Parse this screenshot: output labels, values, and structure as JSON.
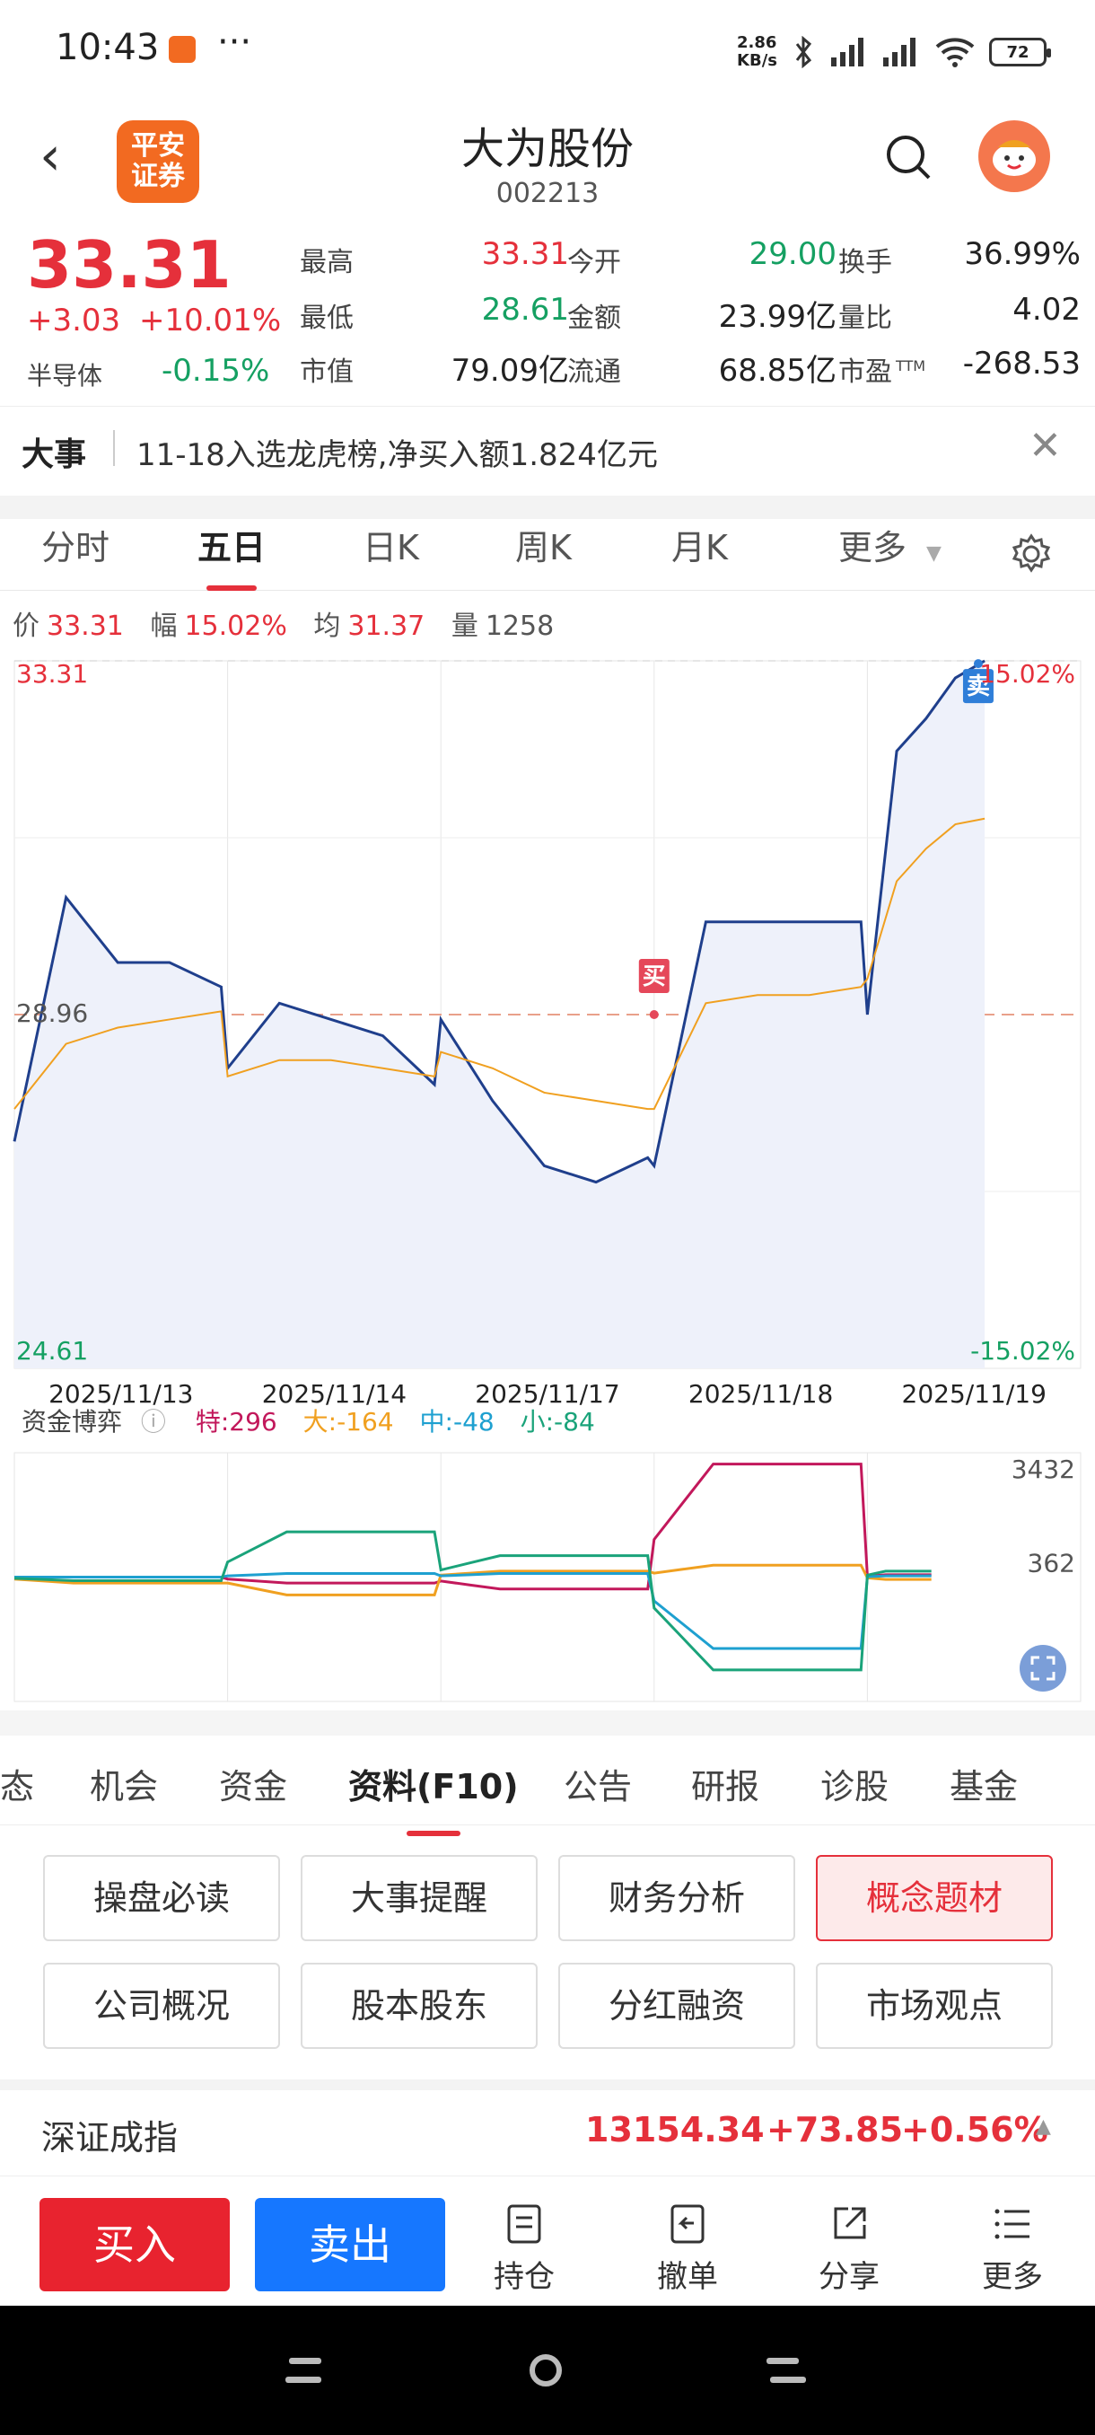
{
  "status": {
    "time": "10:43",
    "net_speed": "2.86\nKB/s",
    "battery": "72"
  },
  "header": {
    "back": "‹",
    "logo": "平安\n证券",
    "title": "大为股份",
    "code": "002213"
  },
  "quote": {
    "price": "33.31",
    "change": "+3.03",
    "change_pct": "+10.01%",
    "sector": "半导体",
    "sector_pct": "-0.15%",
    "fields": [
      {
        "label": "最高",
        "value": "33.31",
        "tone": "red"
      },
      {
        "label": "今开",
        "value": "29.00",
        "tone": "green"
      },
      {
        "label": "换手",
        "value": "36.99%",
        "tone": "black"
      },
      {
        "label": "最低",
        "value": "28.61",
        "tone": "green"
      },
      {
        "label": "金额",
        "value": "23.99亿",
        "tone": "black"
      },
      {
        "label": "量比",
        "value": "4.02",
        "tone": "black"
      },
      {
        "label": "市值",
        "value": "79.09亿",
        "tone": "black"
      },
      {
        "label": "流通",
        "value": "68.85亿",
        "tone": "black"
      },
      {
        "label": "市盈",
        "value": "-268.53",
        "tone": "black",
        "sup": "TTM"
      }
    ]
  },
  "event": {
    "label": "大事",
    "text": "11-18入选龙虎榜,净买入额1.824亿元",
    "close": "✕"
  },
  "chart_tabs": [
    "分时",
    "五日",
    "日K",
    "周K",
    "月K",
    "更多"
  ],
  "chart_tabs_active": 1,
  "info": {
    "price_label": "价",
    "price": "33.31",
    "amp_label": "幅",
    "amp": "15.02%",
    "avg_label": "均",
    "avg": "31.37",
    "vol_label": "量",
    "vol": "1258"
  },
  "chart_data": {
    "type": "line",
    "x": [
      "2025/11/13",
      "2025/11/14",
      "2025/11/17",
      "2025/11/18",
      "2025/11/19"
    ],
    "ylim": [
      24.61,
      33.31
    ],
    "y_left_labels": [
      "33.31",
      "28.96",
      "24.61"
    ],
    "y_right_labels": [
      "15.02%",
      "-15.02%"
    ],
    "prev_close": 28.96,
    "markers": [
      {
        "label": "买",
        "day": "2025/11/18",
        "price": 28.96
      },
      {
        "label": "卖",
        "day": "2025/11/19",
        "price": 32.9
      }
    ],
    "series": [
      {
        "color": "#1f3f8c",
        "values": [
          [
            27.4,
            30.4,
            29.6,
            29.6,
            29.3
          ],
          [
            28.3,
            29.1,
            28.9,
            28.7,
            28.1
          ],
          [
            28.9,
            27.9,
            27.1,
            26.9,
            27.2
          ],
          [
            27.1,
            30.1,
            30.1,
            30.1,
            30.1
          ],
          [
            28.96,
            32.2,
            32.6,
            33.1,
            33.31
          ]
        ]
      },
      {
        "color": "#f0a020",
        "values": [
          [
            27.8,
            28.6,
            28.8,
            28.9,
            29.0
          ],
          [
            28.2,
            28.4,
            28.4,
            28.3,
            28.2
          ],
          [
            28.5,
            28.3,
            28.0,
            27.9,
            27.8
          ],
          [
            27.8,
            29.1,
            29.2,
            29.2,
            29.3
          ],
          [
            29.4,
            30.6,
            31.0,
            31.3,
            31.37
          ]
        ]
      }
    ]
  },
  "flow": {
    "title": "资金博弈",
    "info_icon": "ⓘ",
    "items": [
      {
        "label": "特:296",
        "color": "#c2185b"
      },
      {
        "label": "大:-164",
        "color": "#f0a020"
      },
      {
        "label": "中:-48",
        "color": "#1ea0d0"
      },
      {
        "label": "小:-84",
        "color": "#1aa37a"
      }
    ],
    "y_top": "3432",
    "y_mid": "362"
  },
  "bottom_tabs": [
    "态",
    "机会",
    "资金",
    "资料(F10)",
    "公告",
    "研报",
    "诊股",
    "基金"
  ],
  "bottom_tabs_active": 3,
  "grid_buttons": [
    "操盘必读",
    "大事提醒",
    "财务分析",
    "概念题材",
    "公司概况",
    "股本股东",
    "分红融资",
    "市场观点"
  ],
  "grid_highlight": 3,
  "index": {
    "name": "深证成指",
    "value": "13154.34",
    "change": "+73.85",
    "pct": "+0.56%"
  },
  "actions": {
    "buy": "买入",
    "sell": "卖出",
    "hold": "持仓",
    "cancel": "撤单",
    "share": "分享",
    "more": "更多"
  }
}
